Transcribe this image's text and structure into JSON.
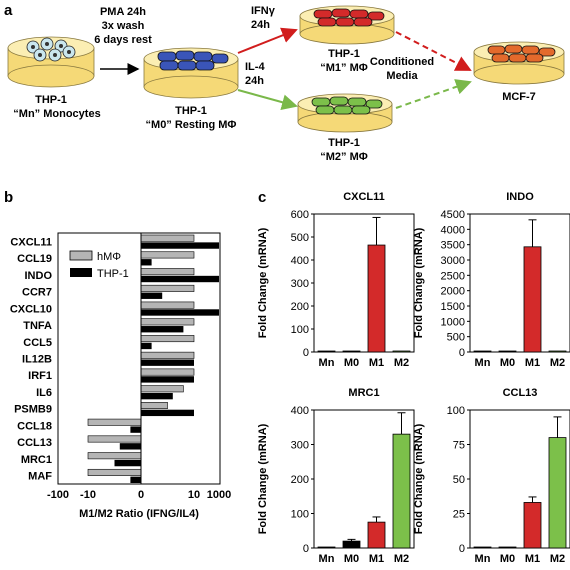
{
  "panel_a": {
    "label": "a",
    "step1": [
      "PMA 24h",
      "3x wash",
      "6 days rest"
    ],
    "ifng": [
      "IFNγ",
      "24h"
    ],
    "il4": [
      "IL-4",
      "24h"
    ],
    "dish_mn": [
      "THP-1",
      "“Mn” Monocytes"
    ],
    "dish_m0": [
      "THP-1",
      "“M0” Resting MΦ"
    ],
    "dish_m1": [
      "THP-1",
      "“M1” MΦ"
    ],
    "dish_m2": [
      "THP-1",
      "“M2” MΦ"
    ],
    "conditioned": [
      "Conditioned",
      "Media"
    ],
    "mcf7": "MCF-7",
    "colors": {
      "mn": "#c9e6ee",
      "m0": "#3a55b8",
      "m1": "#d32a2a",
      "m2": "#7cc04a",
      "mcf7": "#e36a2c",
      "media": "#f5d977",
      "red_arrow": "#d11d1d",
      "green_arrow": "#7ab84a"
    }
  },
  "panel_b": {
    "label": "b",
    "legend": [
      "hMΦ",
      "THP-1"
    ],
    "x_ticks": [
      "-100",
      "-10",
      "0",
      "10",
      "1000"
    ],
    "xlabel": "M1/M2 Ratio (IFNG/IL4)"
  },
  "panel_c": {
    "label": "c",
    "ylabel": "Fold Change (mRNA)"
  },
  "chart_data": [
    {
      "type": "bar",
      "orientation": "horizontal",
      "x_scale": "symmetric-log",
      "categories": [
        "CXCL11",
        "CCL19",
        "INDO",
        "CCR7",
        "CXCL10",
        "TNFA",
        "CCL5",
        "IL12B",
        "IRF1",
        "IL6",
        "PSMB9",
        "CCL18",
        "CCL13",
        "MRC1",
        "MAF"
      ],
      "series": [
        {
          "name": "hMΦ",
          "values": [
            10,
            10,
            10,
            10,
            10,
            10,
            10,
            10,
            10,
            8,
            5,
            -10,
            -10,
            -10,
            -10
          ]
        },
        {
          "name": "THP-1",
          "values": [
            1000,
            2,
            1000,
            4,
            1000,
            8,
            2,
            10,
            10,
            6,
            10,
            -2,
            -4,
            -5,
            -2
          ]
        }
      ],
      "xlabel": "M1/M2 Ratio (IFNG/IL4)",
      "legend_position": "top-left"
    },
    {
      "type": "bar",
      "title": "CXCL11",
      "categories": [
        "Mn",
        "M0",
        "M1",
        "M2"
      ],
      "values": [
        0,
        0,
        465,
        0
      ],
      "errors": [
        0,
        0,
        120,
        0
      ],
      "ylim": [
        0,
        600
      ],
      "yticks": [
        0,
        100,
        200,
        300,
        400,
        500,
        600
      ],
      "ylabel": "Fold Change (mRNA)",
      "colors": [
        "#000000",
        "#000000",
        "#d32a2a",
        "#7cc04a"
      ]
    },
    {
      "type": "bar",
      "title": "INDO",
      "categories": [
        "Mn",
        "M0",
        "M1",
        "M2"
      ],
      "values": [
        0,
        0,
        3430,
        0
      ],
      "errors": [
        0,
        0,
        880,
        0
      ],
      "ylim": [
        0,
        4500
      ],
      "yticks": [
        0,
        500,
        1000,
        1500,
        2000,
        2500,
        3000,
        3500,
        4000,
        4500
      ],
      "ylabel": "Fold Change (mRNA)",
      "colors": [
        "#000000",
        "#000000",
        "#d32a2a",
        "#7cc04a"
      ]
    },
    {
      "type": "bar",
      "title": "MRC1",
      "categories": [
        "Mn",
        "M0",
        "M1",
        "M2"
      ],
      "values": [
        0,
        20,
        75,
        330
      ],
      "errors": [
        0,
        5,
        15,
        62
      ],
      "ylim": [
        0,
        400
      ],
      "yticks": [
        0,
        100,
        200,
        300,
        400
      ],
      "ylabel": "Fold Change (mRNA)",
      "colors": [
        "#000000",
        "#000000",
        "#d32a2a",
        "#7cc04a"
      ]
    },
    {
      "type": "bar",
      "title": "CCL13",
      "categories": [
        "Mn",
        "M0",
        "M1",
        "M2"
      ],
      "values": [
        0,
        0,
        33,
        80
      ],
      "errors": [
        0,
        0,
        4,
        15
      ],
      "ylim": [
        0,
        100
      ],
      "yticks": [
        0,
        25,
        50,
        75,
        100
      ],
      "ylabel": "Fold Change (mRNA)",
      "colors": [
        "#000000",
        "#000000",
        "#d32a2a",
        "#7cc04a"
      ]
    }
  ]
}
